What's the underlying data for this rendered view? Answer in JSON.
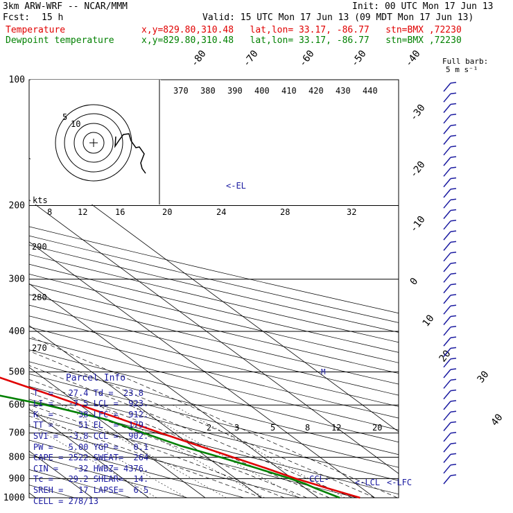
{
  "header": {
    "model": "3km ARW-WRF -- NCAR/MMM",
    "init": "Init: 00 UTC Mon 17 Jun 13",
    "fcst_label": "Fcst:",
    "fcst_value": "15 h",
    "valid": "Valid: 15 UTC Mon 17 Jun 13 (09 MDT Mon 17 Jun 13)",
    "temp_label": "Temperature",
    "dew_label": "Dewpoint temperature",
    "loc_info": "x,y=829.80,310.48   lat,lon= 33.17, -86.77   stn=BMX ,72230"
  },
  "barb_legend": {
    "title": "Full barb:",
    "value": "5 m s⁻¹"
  },
  "hodograph": {
    "units_label": "kts",
    "ring_labels": [
      "5",
      "10"
    ]
  },
  "colors": {
    "temperature": "#e00000",
    "dewpoint": "#008000",
    "parcel": "#1a1aa0",
    "axes": "#000000"
  },
  "chart_data": {
    "type": "line",
    "title": "",
    "x_scale": "skew-T temperature (°C)",
    "y_scale": "log pressure (hPa)",
    "ylim": [
      1000,
      100
    ],
    "pressure_ticks": [
      100,
      200,
      300,
      400,
      500,
      600,
      700,
      800,
      900,
      1000
    ],
    "skewed_temp_labels": [
      -80,
      -70,
      -60,
      -50,
      -40,
      -30,
      -20,
      -10,
      0,
      10,
      20,
      30,
      40
    ],
    "theta_labels_upper": [
      370,
      380,
      390,
      400,
      410,
      420,
      430,
      440
    ],
    "theta_labels_left": [
      290,
      280,
      270
    ],
    "mixing_ratio_labels_lower": [
      2,
      3,
      5,
      8,
      12,
      20
    ],
    "mixing_ratio_labels_upper": [
      8,
      12,
      16,
      20,
      24,
      28,
      32
    ],
    "series": [
      {
        "name": "Temperature",
        "p": [
          1000,
          950,
          925,
          900,
          850,
          800,
          750,
          700,
          650,
          600,
          550,
          500,
          450,
          400,
          350,
          300,
          250,
          200,
          175,
          150,
          125,
          110,
          100
        ],
        "t": [
          27.4,
          24.0,
          22.4,
          20.6,
          17.8,
          14.6,
          11.2,
          7.6,
          4.0,
          0.0,
          -4.4,
          -9.2,
          -14.8,
          -21.0,
          -28.2,
          -36.8,
          -46.8,
          -56.6,
          -60.8,
          -63.5,
          -64.5,
          -66.0,
          -68.0
        ]
      },
      {
        "name": "Dewpoint temperature",
        "p": [
          1000,
          950,
          925,
          900,
          850,
          800,
          750,
          700,
          650,
          600,
          550,
          500,
          450,
          400,
          350,
          300,
          250,
          200,
          175,
          150,
          125,
          110,
          100
        ],
        "t": [
          23.8,
          21.8,
          21.0,
          19.6,
          16.2,
          12.4,
          8.0,
          4.6,
          1.2,
          -6.0,
          -16.0,
          -24.0,
          -27.5,
          -32.0,
          -38.0,
          -45.0,
          -60.0,
          -73.0,
          -78.0,
          -82.0,
          -84.0,
          -86.0,
          -88.0
        ]
      }
    ],
    "annotations": [
      "EL",
      "LCL",
      "LFC",
      "CCL"
    ]
  },
  "parcel_info": {
    "title": "Parcel Info",
    "rows": [
      "T  =   27.4 Td =  23.8",
      "LI =   -7.5 LCL =  923.",
      "K  =     38 LFC =  912.",
      "TT =     51 EL  =  179.",
      "SVI =  -3.8 CCL =  902.",
      "PW =   5.00 YGP =   0.1",
      "CAPE = 2522 SWEAT=  264",
      "CIN =   -32 HWBZ= 4376.",
      "Tc =   29.2 SHEAR=  14.",
      "SREH =   17 LAPSE=  6.5",
      "CELL = 278/13"
    ]
  }
}
